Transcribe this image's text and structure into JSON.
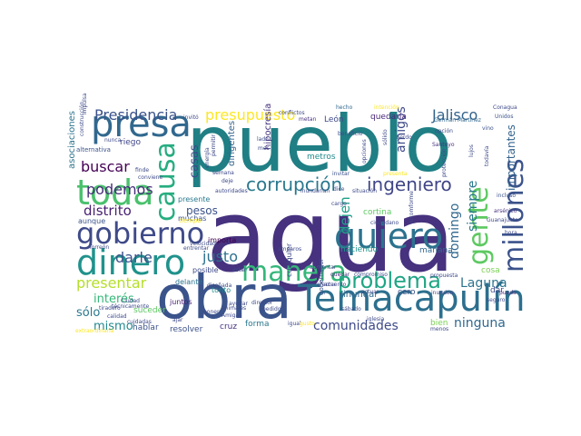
{
  "word_cloud": {
    "background_color": "#ffffff",
    "palette": [
      "#440154",
      "#3b528b",
      "#21918c",
      "#5ec962",
      "#fde725"
    ],
    "words": [
      {
        "text": "agua",
        "weight": 100,
        "color": "#46327e",
        "orientation": "horizontal"
      },
      {
        "text": "pueblo",
        "weight": 80,
        "color": "#1f7f84",
        "orientation": "horizontal"
      },
      {
        "text": "obra",
        "weight": 60,
        "color": "#3a538b",
        "orientation": "horizontal"
      },
      {
        "text": "Temacapulín",
        "weight": 38,
        "color": "#2d6f8e",
        "orientation": "horizontal"
      },
      {
        "text": "presa",
        "weight": 36,
        "color": "#31688e",
        "orientation": "horizontal"
      },
      {
        "text": "toda",
        "weight": 36,
        "color": "#4ac16d",
        "orientation": "horizontal"
      },
      {
        "text": "dinero",
        "weight": 36,
        "color": "#20928c",
        "orientation": "horizontal"
      },
      {
        "text": "quiero",
        "weight": 36,
        "color": "#2c728e",
        "orientation": "horizontal"
      },
      {
        "text": "gobierno",
        "weight": 30,
        "color": "#3e4a89",
        "orientation": "horizontal"
      },
      {
        "text": "manera",
        "weight": 28,
        "color": "#35b779",
        "orientation": "horizontal"
      },
      {
        "text": "causa",
        "weight": 28,
        "color": "#27ad81",
        "orientation": "vertical"
      },
      {
        "text": "millones",
        "weight": 28,
        "color": "#3b528b",
        "orientation": "vertical"
      },
      {
        "text": "gente",
        "weight": 28,
        "color": "#5ec962",
        "orientation": "vertical"
      },
      {
        "text": "problema",
        "weight": 24,
        "color": "#21a585",
        "orientation": "horizontal"
      },
      {
        "text": "corrupción",
        "weight": 20,
        "color": "#2a788e",
        "orientation": "horizontal"
      },
      {
        "text": "ingeniero",
        "weight": 19,
        "color": "#404688",
        "orientation": "horizontal"
      },
      {
        "text": "Presidencia",
        "weight": 16,
        "color": "#3b528b",
        "orientation": "horizontal"
      },
      {
        "text": "presupuesto",
        "weight": 16,
        "color": "#fde725",
        "orientation": "horizontal"
      },
      {
        "text": "Jalisco",
        "weight": 16,
        "color": "#33638d",
        "orientation": "horizontal"
      },
      {
        "text": "buscar",
        "weight": 16,
        "color": "#440154",
        "orientation": "horizontal"
      },
      {
        "text": "podemos",
        "weight": 16,
        "color": "#472d7b",
        "orientation": "horizontal"
      },
      {
        "text": "distrito",
        "weight": 15,
        "color": "#482173",
        "orientation": "horizontal"
      },
      {
        "text": "darle",
        "weight": 16,
        "color": "#3b528b",
        "orientation": "horizontal"
      },
      {
        "text": "justo",
        "weight": 15,
        "color": "#2c728e",
        "orientation": "horizontal"
      },
      {
        "text": "presentar",
        "weight": 15,
        "color": "#b5de2b",
        "orientation": "horizontal"
      },
      {
        "text": "Laguna",
        "weight": 14,
        "color": "#2c728e",
        "orientation": "horizontal"
      },
      {
        "text": "comunidades",
        "weight": 14,
        "color": "#3e4a89",
        "orientation": "horizontal"
      },
      {
        "text": "ninguna",
        "weight": 14,
        "color": "#31688e",
        "orientation": "horizontal"
      },
      {
        "text": "interés",
        "weight": 13,
        "color": "#35b779",
        "orientation": "horizontal"
      },
      {
        "text": "sólo",
        "weight": 13,
        "color": "#2a788e",
        "orientation": "horizontal"
      },
      {
        "text": "mismo",
        "weight": 13,
        "color": "#23888e",
        "orientation": "horizontal"
      },
      {
        "text": "amigos",
        "weight": 13,
        "color": "#3e4a89",
        "orientation": "vertical"
      },
      {
        "text": "dejen",
        "weight": 14,
        "color": "#1fa088",
        "orientation": "vertical"
      },
      {
        "text": "domingo",
        "weight": 13,
        "color": "#31688e",
        "orientation": "vertical"
      },
      {
        "text": "siempre",
        "weight": 13,
        "color": "#2a788e",
        "orientation": "vertical"
      },
      {
        "text": "importantes",
        "weight": 12,
        "color": "#33638d",
        "orientation": "vertical"
      },
      {
        "text": "casas",
        "weight": 12,
        "color": "#3e4a89",
        "orientation": "vertical"
      },
      {
        "text": "pesos",
        "weight": 11,
        "color": "#3b528b",
        "orientation": "horizontal"
      },
      {
        "text": "asociaciones",
        "weight": 10,
        "color": "#2c728e",
        "orientation": "vertical"
      },
      {
        "text": "dirigentes",
        "weight": 9,
        "color": "#33638d",
        "orientation": "vertical"
      },
      {
        "text": "hipocresía",
        "weight": 9,
        "color": "#46327e",
        "orientation": "vertical"
      },
      {
        "text": "metros",
        "weight": 8,
        "color": "#238a8d",
        "orientation": "horizontal"
      },
      {
        "text": "cortina",
        "weight": 8,
        "color": "#5ec962",
        "orientation": "horizontal"
      },
      {
        "text": "haciendo",
        "weight": 9,
        "color": "#20928c",
        "orientation": "horizontal"
      },
      {
        "text": "mañana",
        "weight": 8,
        "color": "#31688e",
        "orientation": "horizontal"
      },
      {
        "text": "cosa",
        "weight": 8,
        "color": "#7ad151",
        "orientation": "horizontal"
      },
      {
        "text": "inundar",
        "weight": 9,
        "color": "#31688e",
        "orientation": "horizontal"
      },
      {
        "text": "cero",
        "weight": 8,
        "color": "#3b528b",
        "orientation": "horizontal"
      },
      {
        "text": "dar",
        "weight": 8,
        "color": "#3e4a89",
        "orientation": "horizontal"
      },
      {
        "text": "bien",
        "weight": 8,
        "color": "#7ad151",
        "orientation": "horizontal"
      },
      {
        "text": "hablar",
        "weight": 8,
        "color": "#3b528b",
        "orientation": "horizontal"
      },
      {
        "text": "resolver",
        "weight": 8,
        "color": "#3b528b",
        "orientation": "horizontal"
      },
      {
        "text": "forma",
        "weight": 8,
        "color": "#2a788e",
        "orientation": "horizontal"
      },
      {
        "text": "cruz",
        "weight": 8,
        "color": "#46327e",
        "orientation": "horizontal"
      },
      {
        "text": "suceder",
        "weight": 8,
        "color": "#5ec962",
        "orientation": "horizontal"
      },
      {
        "text": "riego",
        "weight": 8,
        "color": "#404688",
        "orientation": "horizontal"
      },
      {
        "text": "León",
        "weight": 8,
        "color": "#3e4a89",
        "orientation": "horizontal"
      },
      {
        "text": "quedaría",
        "weight": 8,
        "color": "#482878",
        "orientation": "horizontal"
      },
      {
        "text": "muchas",
        "weight": 7,
        "color": "#3b528b",
        "orientation": "horizontal"
      },
      {
        "text": "presente",
        "weight": 7,
        "color": "#2a788e",
        "orientation": "horizontal"
      },
      {
        "text": "aunque",
        "weight": 7,
        "color": "#3b528b",
        "orientation": "horizontal"
      },
      {
        "text": "importa",
        "weight": 7,
        "color": "#440154",
        "orientation": "horizontal"
      },
      {
        "text": "posible",
        "weight": 7,
        "color": "#3e4a89",
        "orientation": "horizontal"
      },
      {
        "text": "delante",
        "weight": 7,
        "color": "#2c728e",
        "orientation": "horizontal"
      },
      {
        "text": "tonto",
        "weight": 7,
        "color": "#238a8d",
        "orientation": "horizontal"
      },
      {
        "text": "juntos",
        "weight": 7,
        "color": "#481f70",
        "orientation": "horizontal"
      },
      {
        "text": "alternativa",
        "weight": 7,
        "color": "#3b528b",
        "orientation": "horizontal"
      },
      {
        "text": "tiempo",
        "weight": 7,
        "color": "#fde725",
        "orientation": "horizontal"
      },
      {
        "text": "cualquier",
        "weight": 7,
        "color": "#3e4a89",
        "orientation": "vertical"
      },
      {
        "text": "gobernador",
        "weight": 6,
        "color": "#3b528b",
        "orientation": "vertical"
      },
      {
        "text": "Germán Martínez",
        "weight": 6,
        "color": "#31688e",
        "orientation": "horizontal"
      },
      {
        "text": "Conagua",
        "weight": 5,
        "color": "#3e4a89",
        "orientation": "horizontal"
      },
      {
        "text": "Unidos",
        "weight": 5,
        "color": "#3b528b",
        "orientation": "horizontal"
      },
      {
        "text": "opción",
        "weight": 5,
        "color": "#3e4a89",
        "orientation": "horizontal"
      },
      {
        "text": "vino",
        "weight": 5,
        "color": "#3b528b",
        "orientation": "horizontal"
      },
      {
        "text": "Santoyo",
        "weight": 5,
        "color": "#46327e",
        "orientation": "horizontal"
      },
      {
        "text": "hecho",
        "weight": 5,
        "color": "#31688e",
        "orientation": "horizontal"
      },
      {
        "text": "conflictos",
        "weight": 5,
        "color": "#3e4a89",
        "orientation": "horizontal"
      },
      {
        "text": "metan",
        "weight": 5,
        "color": "#46327e",
        "orientation": "horizontal"
      },
      {
        "text": "beneficio",
        "weight": 5,
        "color": "#3e4a89",
        "orientation": "horizontal"
      },
      {
        "text": "intención",
        "weight": 5,
        "color": "#fde725",
        "orientation": "horizontal"
      },
      {
        "text": "invitó",
        "weight": 5,
        "color": "#3e4a89",
        "orientation": "horizontal"
      },
      {
        "text": "lado",
        "weight": 5,
        "color": "#3e4a89",
        "orientation": "horizontal"
      },
      {
        "text": "mes",
        "weight": 5,
        "color": "#3e4a89",
        "orientation": "horizontal"
      },
      {
        "text": "invitar",
        "weight": 5,
        "color": "#3b528b",
        "orientation": "horizontal"
      },
      {
        "text": "dice",
        "weight": 5,
        "color": "#3e4a89",
        "orientation": "horizontal"
      },
      {
        "text": "presenta",
        "weight": 5,
        "color": "#fde725",
        "orientation": "horizontal"
      },
      {
        "text": "incluso",
        "weight": 5,
        "color": "#3b528b",
        "orientation": "horizontal"
      },
      {
        "text": "arsénico",
        "weight": 5,
        "color": "#46327e",
        "orientation": "horizontal"
      },
      {
        "text": "Guanajuato",
        "weight": 5,
        "color": "#3e4a89",
        "orientation": "horizontal"
      },
      {
        "text": "hora",
        "weight": 5,
        "color": "#3e4a89",
        "orientation": "horizontal"
      },
      {
        "text": "Torreón",
        "weight": 5,
        "color": "#3e4a89",
        "orientation": "horizontal"
      },
      {
        "text": "velocidad",
        "weight": 5,
        "color": "#3e4a89",
        "orientation": "horizontal"
      },
      {
        "text": "amparos",
        "weight": 5,
        "color": "#3e4a89",
        "orientation": "horizontal"
      },
      {
        "text": "quedar",
        "weight": 5,
        "color": "#46327e",
        "orientation": "horizontal"
      },
      {
        "text": "compromiso",
        "weight": 5,
        "color": "#3e4a89",
        "orientation": "horizontal"
      },
      {
        "text": "propuesta",
        "weight": 5,
        "color": "#3e4a89",
        "orientation": "horizontal"
      },
      {
        "text": "seguro",
        "weight": 5,
        "color": "#3e4a89",
        "orientation": "horizontal"
      },
      {
        "text": "inunden",
        "weight": 5,
        "color": "#3e4a89",
        "orientation": "horizontal"
      },
      {
        "text": "pueda",
        "weight": 5,
        "color": "#46327e",
        "orientation": "horizontal"
      },
      {
        "text": "animales",
        "weight": 5,
        "color": "#3e4a89",
        "orientation": "horizontal"
      },
      {
        "text": "Amigas",
        "weight": 5,
        "color": "#3e4a89",
        "orientation": "horizontal"
      },
      {
        "text": "Ciudad",
        "weight": 5,
        "color": "#3e4a89",
        "orientation": "horizontal"
      },
      {
        "text": "técnicamente",
        "weight": 5,
        "color": "#3e4a89",
        "orientation": "horizontal"
      },
      {
        "text": "sábado",
        "weight": 5,
        "color": "#3e4a89",
        "orientation": "horizontal"
      },
      {
        "text": "iglesia",
        "weight": 5,
        "color": "#3e4a89",
        "orientation": "horizontal"
      },
      {
        "text": "menos",
        "weight": 5,
        "color": "#3e4a89",
        "orientation": "horizontal"
      },
      {
        "text": "tiradero",
        "weight": 5,
        "color": "#3e4a89",
        "orientation": "horizontal"
      },
      {
        "text": "conviene",
        "weight": 5,
        "color": "#3e4a89",
        "orientation": "horizontal"
      },
      {
        "text": "finde",
        "weight": 5,
        "color": "#3e4a89",
        "orientation": "horizontal"
      },
      {
        "text": "autoridades",
        "weight": 5,
        "color": "#3e4a89",
        "orientation": "horizontal"
      },
      {
        "text": "semana",
        "weight": 5,
        "color": "#3e4a89",
        "orientation": "horizontal"
      },
      {
        "text": "ciudadano",
        "weight": 5,
        "color": "#3e4a89",
        "orientation": "horizontal"
      },
      {
        "text": "cargo",
        "weight": 5,
        "color": "#3e4a89",
        "orientation": "horizontal"
      },
      {
        "text": "situación",
        "weight": 5,
        "color": "#3e4a89",
        "orientation": "horizontal"
      },
      {
        "text": "inundarían",
        "weight": 5,
        "color": "#3e4a89",
        "orientation": "horizontal"
      },
      {
        "text": "aumentar",
        "weight": 5,
        "color": "#3e4a89",
        "orientation": "horizontal"
      },
      {
        "text": "actuar",
        "weight": 5,
        "color": "#3e4a89",
        "orientation": "horizontal"
      },
      {
        "text": "acuerdo",
        "weight": 5,
        "color": "#3e4a89",
        "orientation": "horizontal"
      },
      {
        "text": "efectar",
        "weight": 5,
        "color": "#3e4a89",
        "orientation": "horizontal"
      },
      {
        "text": "diseñada",
        "weight": 5,
        "color": "#3e4a89",
        "orientation": "horizontal"
      },
      {
        "text": "ayudar",
        "weight": 5,
        "color": "#3e4a89",
        "orientation": "horizontal"
      },
      {
        "text": "igual",
        "weight": 5,
        "color": "#3e4a89",
        "orientation": "horizontal"
      },
      {
        "text": "gusto",
        "weight": 5,
        "color": "#fde725",
        "orientation": "horizontal"
      },
      {
        "text": "nunca",
        "weight": 5,
        "color": "#3e4a89",
        "orientation": "horizontal"
      },
      {
        "text": "Lerdo",
        "weight": 5,
        "color": "#3e4a89",
        "orientation": "horizontal"
      },
      {
        "text": "lujos",
        "weight": 5,
        "color": "#3e4a89",
        "orientation": "vertical"
      },
      {
        "text": "todavía",
        "weight": 5,
        "color": "#3e4a89",
        "orientation": "vertical"
      },
      {
        "text": "protección",
        "weight": 5,
        "color": "#3e4a89",
        "orientation": "vertical"
      },
      {
        "text": "deje",
        "weight": 5,
        "color": "#3e4a89",
        "orientation": "horizontal"
      },
      {
        "text": "entrentar",
        "weight": 5,
        "color": "#3e4a89",
        "orientation": "horizontal"
      },
      {
        "text": "incomforme",
        "weight": 5,
        "color": "#3e4a89",
        "orientation": "vertical"
      },
      {
        "text": "opciones",
        "weight": 5,
        "color": "#3e4a89",
        "orientation": "vertical"
      },
      {
        "text": "construcción",
        "weight": 5,
        "color": "#3e4a89",
        "orientation": "vertical"
      },
      {
        "text": "permitir",
        "weight": 5,
        "color": "#3e4a89",
        "orientation": "vertical"
      },
      {
        "text": "energía",
        "weight": 5,
        "color": "#3e4a89",
        "orientation": "vertical"
      },
      {
        "text": "impulsa",
        "weight": 5,
        "color": "#3e4a89",
        "orientation": "vertical"
      },
      {
        "text": "sólido",
        "weight": 5,
        "color": "#3e4a89",
        "orientation": "vertical"
      },
      {
        "text": "director",
        "weight": 5,
        "color": "#3e4a89",
        "orientation": "horizontal"
      },
      {
        "text": "estar",
        "weight": 5,
        "color": "#3e4a89",
        "orientation": "horizontal"
      },
      {
        "text": "pedido",
        "weight": 5,
        "color": "#3e4a89",
        "orientation": "horizontal"
      },
      {
        "text": "calidad",
        "weight": 5,
        "color": "#3e4a89",
        "orientation": "horizontal"
      },
      {
        "text": "ajar",
        "weight": 5,
        "color": "#3e4a89",
        "orientation": "horizontal"
      },
      {
        "text": "extraordinaria",
        "weight": 5,
        "color": "#fde725",
        "orientation": "horizontal"
      },
      {
        "text": "poner",
        "weight": 5,
        "color": "#3e4a89",
        "orientation": "horizontal"
      },
      {
        "text": "cuidadas",
        "weight": 5,
        "color": "#3e4a89",
        "orientation": "horizontal"
      }
    ]
  }
}
